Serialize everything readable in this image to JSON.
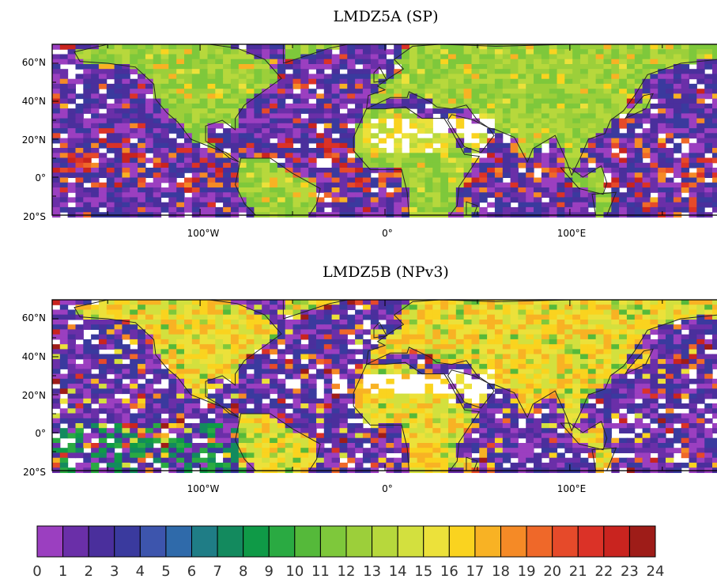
{
  "panels": [
    {
      "title": "LMDZ5A (SP)",
      "seed": 7,
      "style": "sp"
    },
    {
      "title": "LMDZ5B (NPv3)",
      "seed": 19,
      "style": "np"
    }
  ],
  "lat_ticks": [
    "60°N",
    "40°N",
    "20°N",
    "0°",
    "20°S"
  ],
  "lon_ticks": [
    "100°W",
    "0°",
    "100°E"
  ],
  "colorbar": {
    "labels": [
      "0",
      "1",
      "2",
      "3",
      "4",
      "5",
      "6",
      "7",
      "8",
      "9",
      "10",
      "11",
      "12",
      "13",
      "14",
      "15",
      "16",
      "17",
      "18",
      "19",
      "20",
      "21",
      "22",
      "23",
      "24"
    ],
    "colors": [
      "#9b3fc0",
      "#6a2fa8",
      "#4a2f9c",
      "#3a3a9e",
      "#3d55ad",
      "#2f6aaa",
      "#1f7d86",
      "#138a5e",
      "#0f9a47",
      "#2aaa42",
      "#55b93a",
      "#7ec83b",
      "#9ccf3a",
      "#b7d83c",
      "#d3e03e",
      "#ece13a",
      "#fad31f",
      "#f8b224",
      "#f58a26",
      "#ef6829",
      "#e64a2a",
      "#db3227",
      "#c9241f",
      "#9e1c18"
    ]
  }
}
